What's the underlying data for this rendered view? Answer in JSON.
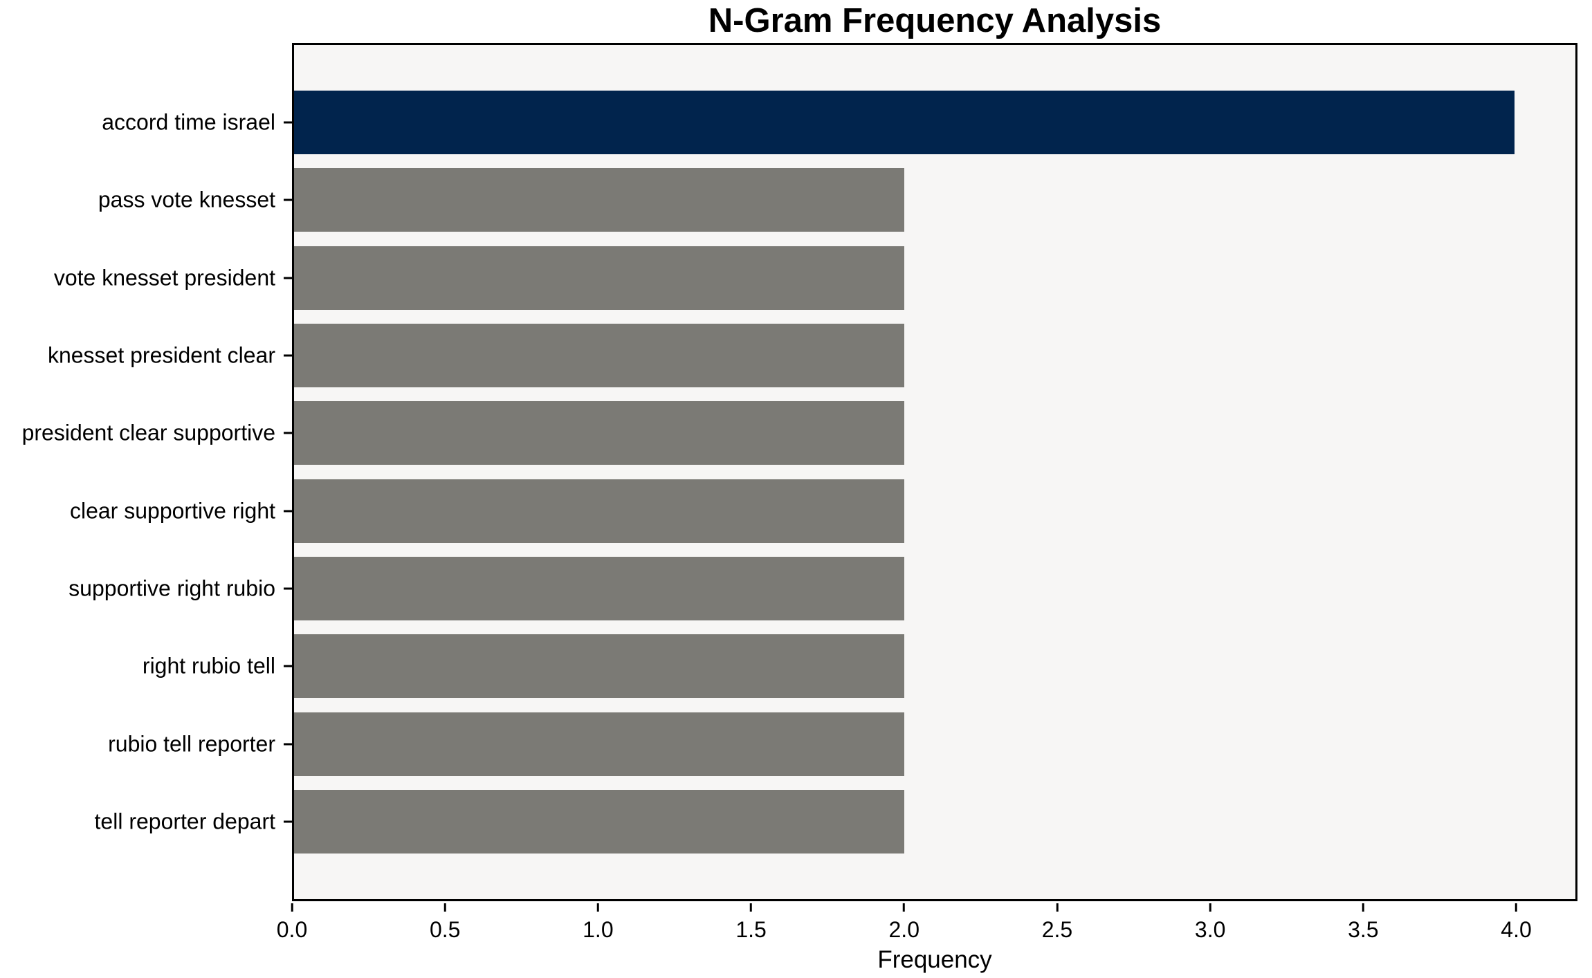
{
  "figure": {
    "background": "#ffffff",
    "plot_background": "#f7f6f5",
    "spine_color": "#000000"
  },
  "chart_data": {
    "type": "bar",
    "orientation": "horizontal",
    "title": "N-Gram Frequency Analysis",
    "xlabel": "Frequency",
    "ylabel": "",
    "categories": [
      "accord time israel",
      "pass vote knesset",
      "vote knesset president",
      "knesset president clear",
      "president clear supportive",
      "clear supportive right",
      "supportive right rubio",
      "right rubio tell",
      "rubio tell reporter",
      "tell reporter depart"
    ],
    "values": [
      4,
      2,
      2,
      2,
      2,
      2,
      2,
      2,
      2,
      2
    ],
    "bar_colors": [
      "#01244d",
      "#7b7a75",
      "#7b7a75",
      "#7b7a75",
      "#7b7a75",
      "#7b7a75",
      "#7b7a75",
      "#7b7a75",
      "#7b7a75",
      "#7b7a75"
    ],
    "highlight_color": "#01244d",
    "default_color": "#7b7a75",
    "xlim": [
      0,
      4.2
    ],
    "xticks": [
      0,
      0.5,
      1,
      1.5,
      2,
      2.5,
      3,
      3.5,
      4
    ],
    "xtick_labels": [
      "0.0",
      "0.5",
      "1.0",
      "1.5",
      "2.0",
      "2.5",
      "3.0",
      "3.5",
      "4.0"
    ],
    "grid": false,
    "legend": false
  }
}
